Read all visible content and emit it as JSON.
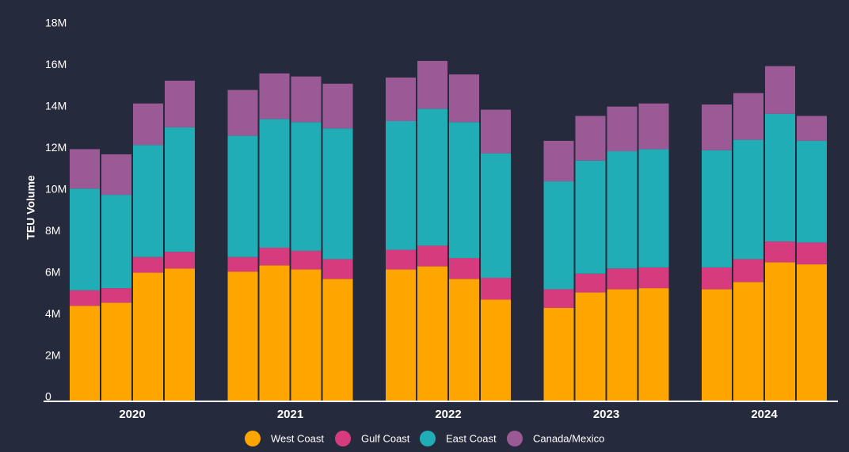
{
  "chart_data": {
    "type": "stacked_bar",
    "y_label": "TEU Volume",
    "groups": [
      "2020",
      "2021",
      "2022",
      "2023",
      "2024"
    ],
    "bars_per_group": 4,
    "series": [
      {
        "name": "West Coast",
        "color": "#ffa500",
        "values": [
          4.6,
          4.75,
          6.2,
          6.4,
          6.25,
          6.55,
          6.35,
          5.9,
          6.35,
          6.5,
          5.9,
          4.9,
          4.5,
          5.25,
          5.4,
          5.45,
          5.4,
          5.75,
          6.7,
          6.6
        ]
      },
      {
        "name": "Gulf Coast",
        "color": "#d63b7e",
        "values": [
          0.75,
          0.7,
          0.75,
          0.8,
          0.7,
          0.85,
          0.9,
          0.95,
          0.95,
          1.0,
          1.0,
          1.05,
          0.9,
          0.9,
          1.0,
          1.0,
          1.05,
          1.1,
          1.0,
          1.05
        ]
      },
      {
        "name": "East Coast",
        "color": "#21adb6",
        "values": [
          4.9,
          4.5,
          5.4,
          6.0,
          5.85,
          6.2,
          6.2,
          6.3,
          6.2,
          6.6,
          6.55,
          6.0,
          5.2,
          5.45,
          5.65,
          5.7,
          5.65,
          5.75,
          6.15,
          4.9
        ]
      },
      {
        "name": "Canada/Mexico",
        "color": "#9b5a96",
        "values": [
          1.9,
          1.95,
          2.0,
          2.25,
          2.2,
          2.2,
          2.2,
          2.15,
          2.1,
          2.3,
          2.3,
          2.1,
          1.95,
          2.15,
          2.15,
          2.2,
          2.2,
          2.25,
          2.3,
          1.2
        ]
      }
    ],
    "ylim": [
      0,
      18
    ],
    "yticks": [
      0,
      {
        "value": 2,
        "label": "2M"
      },
      {
        "value": 4,
        "label": "4M"
      },
      {
        "value": 6,
        "label": "6M"
      },
      {
        "value": 8,
        "label": "8M"
      },
      {
        "value": 10,
        "label": "10M"
      },
      {
        "value": 12,
        "label": "12M"
      },
      {
        "value": 14,
        "label": "14M"
      },
      {
        "value": 16,
        "label": "16M"
      },
      {
        "value": 18,
        "label": "18M"
      }
    ],
    "legend": "bottom"
  }
}
